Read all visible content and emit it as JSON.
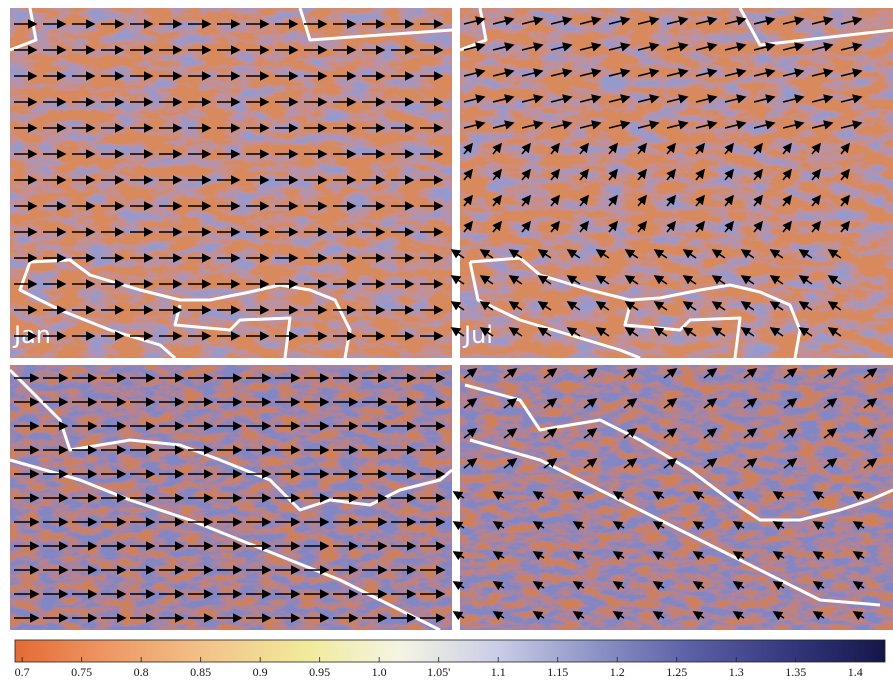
{
  "panels": [
    {
      "label": "Jan"
    },
    {
      "label": "Jul"
    }
  ],
  "colorbar": {
    "range": [
      0.694,
      1.425
    ],
    "colors": [
      "#e46a34",
      "#ee9a66",
      "#f3c48a",
      "#f1ea9a",
      "#f4f4e4",
      "#c9cde6",
      "#8d93c6",
      "#5a5fa6",
      "#35387e",
      "#14164a"
    ],
    "ticks": [
      0.7,
      0.75,
      0.8,
      0.85,
      0.9,
      0.95,
      {
        "value": 1,
        "label": "1.0"
      },
      {
        "value": 1.05,
        "label": "1.05'"
      },
      1.1,
      1.15,
      1.2,
      1.25,
      1.3,
      1.35,
      1.4
    ]
  }
}
